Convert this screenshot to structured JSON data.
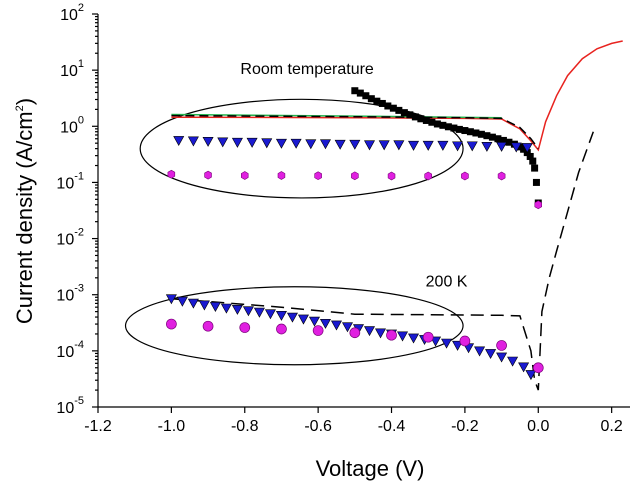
{
  "chart_data": {
    "type": "line",
    "xlabel": "Voltage (V)",
    "ylabel_base": "Current density (A/cm",
    "ylabel_exp": "2",
    "ylabel_close": ")",
    "xlim": [
      -1.2,
      0.25
    ],
    "ylim": [
      1e-05,
      100
    ],
    "yscale": "log",
    "x_ticks": [
      {
        "v": -1.2,
        "label": "-1.2"
      },
      {
        "v": -1.0,
        "label": "-1.0"
      },
      {
        "v": -0.8,
        "label": "-0.8"
      },
      {
        "v": -0.6,
        "label": "-0.6"
      },
      {
        "v": -0.4,
        "label": "-0.4"
      },
      {
        "v": -0.2,
        "label": "-0.2"
      },
      {
        "v": 0.0,
        "label": "0.0"
      },
      {
        "v": 0.2,
        "label": "0.2"
      }
    ],
    "y_ticks": [
      {
        "v": 100,
        "base": "10",
        "exp": "2"
      },
      {
        "v": 10,
        "base": "10",
        "exp": "1"
      },
      {
        "v": 1,
        "base": "10",
        "exp": "0"
      },
      {
        "v": 0.1,
        "base": "10",
        "exp": "-1"
      },
      {
        "v": 0.01,
        "base": "10",
        "exp": "-2"
      },
      {
        "v": 0.001,
        "base": "10",
        "exp": "-3"
      },
      {
        "v": 0.0001,
        "base": "10",
        "exp": "-4"
      },
      {
        "v": 1e-05,
        "base": "10",
        "exp": "-5"
      }
    ],
    "annotations": [
      {
        "text": "Room temperature",
        "x": -0.63,
        "y": 8.5
      },
      {
        "text": "200 K",
        "x": -0.25,
        "y": 0.0014
      }
    ],
    "ellipses": [
      {
        "cx": -0.645,
        "cy": 0.4,
        "rx": 0.44,
        "ry_lo": 0.035,
        "ry_hi": 2.0
      },
      {
        "cx": -0.665,
        "cy": 0.00028,
        "rx": 0.46,
        "ry_lo": 5.5e-05,
        "ry_hi": 0.00135
      }
    ],
    "series": [
      {
        "kind": "line",
        "color": "#e8231f",
        "dash": "",
        "x": [
          -1.0,
          -0.5,
          -0.2,
          -0.1,
          -0.05,
          -0.02,
          0.0,
          0.02,
          0.05,
          0.08,
          0.12,
          0.16,
          0.2,
          0.23
        ],
        "y": [
          1.45,
          1.42,
          1.38,
          1.35,
          0.9,
          0.55,
          0.38,
          1.2,
          3.5,
          8.0,
          16.0,
          24.0,
          30.0,
          33.0
        ]
      },
      {
        "kind": "line",
        "color": "#22b14c",
        "dash": "",
        "x": [
          -1.0,
          -0.5,
          -0.1
        ],
        "y": [
          1.62,
          1.52,
          1.42
        ]
      },
      {
        "kind": "line",
        "color": "#000000",
        "dash": "9,5",
        "x": [
          -1.0,
          -0.5,
          -0.2,
          -0.1,
          -0.05,
          -0.02,
          0.0
        ],
        "y": [
          1.55,
          1.48,
          1.42,
          1.38,
          0.95,
          0.6,
          0.4
        ]
      },
      {
        "kind": "line",
        "color": "#000000",
        "dash": "13,7",
        "x": [
          -1.0,
          -0.7,
          -0.5,
          -0.3,
          -0.1,
          -0.05,
          -0.02,
          -0.01,
          0.0,
          0.01,
          0.03,
          0.05,
          0.08,
          0.11,
          0.15
        ],
        "y": [
          0.00085,
          0.0006,
          0.00045,
          0.00044,
          0.00043,
          0.00042,
          0.0001,
          3e-05,
          2e-05,
          0.0005,
          0.002,
          0.006,
          0.03,
          0.15,
          0.8
        ]
      },
      {
        "kind": "marker",
        "marker": "square",
        "color": "#000000",
        "x": [
          -0.5,
          -0.485,
          -0.47,
          -0.455,
          -0.44,
          -0.425,
          -0.41,
          -0.395,
          -0.38,
          -0.365,
          -0.35,
          -0.335,
          -0.32,
          -0.305,
          -0.29,
          -0.275,
          -0.26,
          -0.245,
          -0.23,
          -0.215,
          -0.2,
          -0.185,
          -0.17,
          -0.155,
          -0.14,
          -0.125,
          -0.11,
          -0.095,
          -0.08,
          -0.065,
          -0.05,
          -0.04,
          -0.03,
          -0.022,
          -0.015,
          -0.01,
          -0.005,
          0.0
        ],
        "y": [
          4.3,
          3.9,
          3.5,
          3.1,
          2.8,
          2.55,
          2.3,
          2.1,
          1.92,
          1.75,
          1.6,
          1.47,
          1.36,
          1.27,
          1.18,
          1.1,
          1.04,
          0.98,
          0.93,
          0.88,
          0.84,
          0.8,
          0.76,
          0.72,
          0.68,
          0.64,
          0.6,
          0.56,
          0.52,
          0.48,
          0.43,
          0.39,
          0.34,
          0.29,
          0.24,
          0.18,
          0.1,
          0.043
        ]
      },
      {
        "kind": "marker",
        "marker": "triangle",
        "color": "#1a1ad0",
        "x": [
          -0.98,
          -0.94,
          -0.9,
          -0.86,
          -0.82,
          -0.78,
          -0.74,
          -0.7,
          -0.66,
          -0.62,
          -0.58,
          -0.54,
          -0.5,
          -0.46,
          -0.42,
          -0.38,
          -0.34,
          -0.3,
          -0.26,
          -0.22,
          -0.18,
          -0.14,
          -0.1,
          -0.06,
          -0.03
        ],
        "y": [
          0.56,
          0.55,
          0.54,
          0.53,
          0.52,
          0.52,
          0.51,
          0.5,
          0.5,
          0.49,
          0.49,
          0.48,
          0.48,
          0.47,
          0.47,
          0.47,
          0.46,
          0.46,
          0.46,
          0.45,
          0.45,
          0.44,
          0.44,
          0.43,
          0.42
        ]
      },
      {
        "kind": "marker",
        "marker": "hexagon",
        "color": "#e020e0",
        "x": [
          -1.0,
          -0.9,
          -0.8,
          -0.7,
          -0.6,
          -0.5,
          -0.4,
          -0.3,
          -0.2,
          -0.1,
          0.0
        ],
        "y": [
          0.14,
          0.135,
          0.133,
          0.133,
          0.132,
          0.131,
          0.13,
          0.13,
          0.13,
          0.13,
          0.04
        ]
      },
      {
        "kind": "marker",
        "marker": "triangle",
        "color": "#1a1ad0",
        "x": [
          -1.0,
          -0.97,
          -0.94,
          -0.91,
          -0.88,
          -0.85,
          -0.82,
          -0.79,
          -0.76,
          -0.73,
          -0.7,
          -0.67,
          -0.64,
          -0.61,
          -0.58,
          -0.55,
          -0.52,
          -0.49,
          -0.46,
          -0.43,
          -0.4,
          -0.37,
          -0.34,
          -0.31,
          -0.28,
          -0.25,
          -0.22,
          -0.19,
          -0.16,
          -0.13,
          -0.1,
          -0.07,
          -0.04,
          -0.02
        ],
        "y": [
          0.00085,
          0.00077,
          0.00071,
          0.00066,
          0.00062,
          0.00058,
          0.00055,
          0.00052,
          0.00049,
          0.00046,
          0.00043,
          0.0004,
          0.00037,
          0.00034,
          0.00031,
          0.00029,
          0.00027,
          0.00025,
          0.00023,
          0.00021,
          0.0002,
          0.000185,
          0.00017,
          0.00016,
          0.00015,
          0.000138,
          0.000126,
          0.000114,
          0.0001,
          9e-05,
          7.8e-05,
          6.6e-05,
          5.2e-05,
          3.8e-05
        ]
      },
      {
        "kind": "marker",
        "marker": "circle",
        "color": "#e020e0",
        "x": [
          -1.0,
          -0.9,
          -0.8,
          -0.7,
          -0.6,
          -0.5,
          -0.4,
          -0.3,
          -0.2,
          -0.1,
          0.0
        ],
        "y": [
          0.0003,
          0.000275,
          0.00026,
          0.000245,
          0.00023,
          0.00021,
          0.00019,
          0.000175,
          0.00015,
          0.000125,
          5e-05
        ]
      }
    ]
  }
}
